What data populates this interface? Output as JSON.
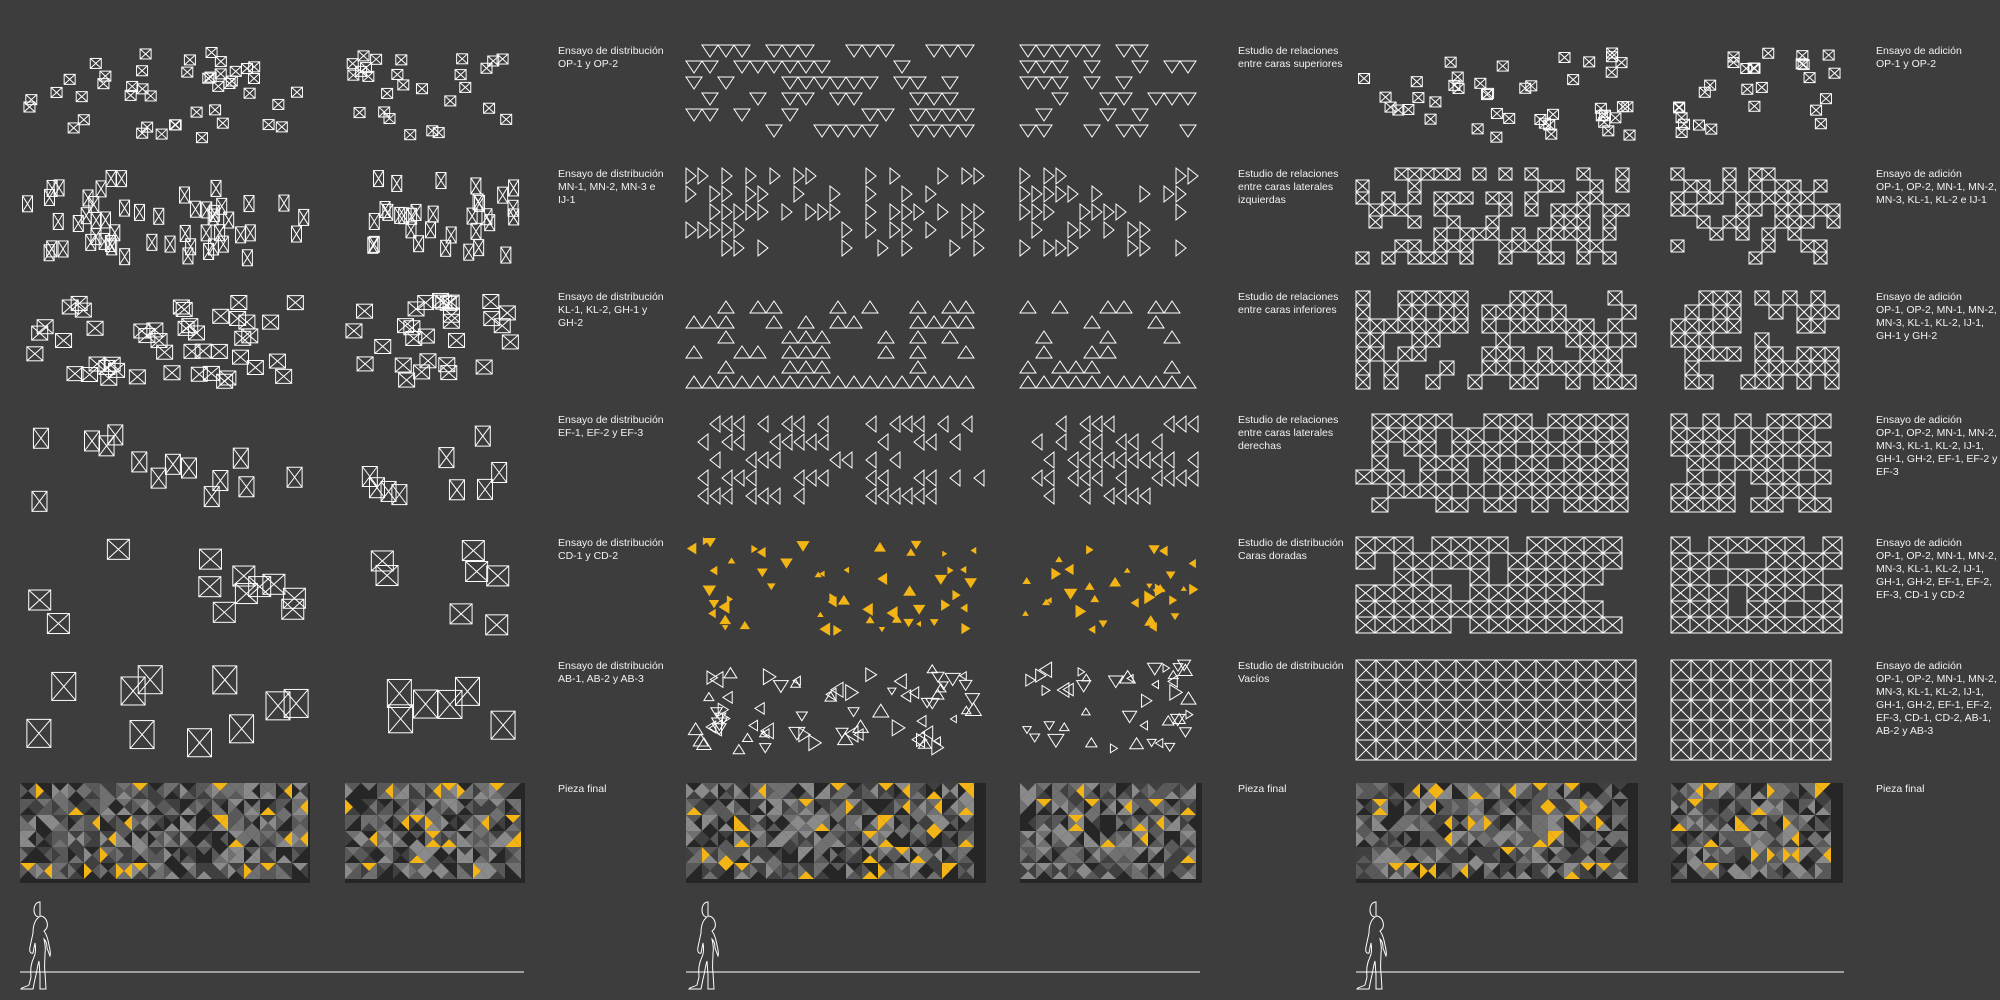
{
  "colors": {
    "background": "#3d3d3d",
    "line": "#ffffff",
    "gold": "#f3b416",
    "tile_dark": "#262626",
    "tile_mid": "#595959",
    "tile_light": "#8a8a8a"
  },
  "icons": [
    "human-silhouette-icon"
  ],
  "columns": [
    {
      "name": "distribucion",
      "rows": [
        {
          "title": "Ensayo de distribución",
          "subtitle": "OP-1 y OP-2"
        },
        {
          "title": "Ensayo de distribución",
          "subtitle": "MN-1, MN-2, MN-3 e\nIJ-1"
        },
        {
          "title": "Ensayo de distribución",
          "subtitle": "KL-1, KL-2, GH-1 y\nGH-2"
        },
        {
          "title": "Ensayo de distribución",
          "subtitle": "EF-1, EF-2 y EF-3"
        },
        {
          "title": "Ensayo de distribución",
          "subtitle": "CD-1 y CD-2"
        },
        {
          "title": "Ensayo de distribución",
          "subtitle": "AB-1, AB-2 y AB-3"
        },
        {
          "title": "Pieza final",
          "subtitle": ""
        }
      ]
    },
    {
      "name": "relaciones",
      "rows": [
        {
          "title": "Estudio de relaciones",
          "subtitle": "entre caras superiores"
        },
        {
          "title": "Estudio de relaciones",
          "subtitle": "entre caras laterales\nizquierdas"
        },
        {
          "title": "Estudio de relaciones",
          "subtitle": "entre caras inferiores"
        },
        {
          "title": "Estudio de relaciones",
          "subtitle": "entre caras laterales\nderechas"
        },
        {
          "title": "Estudio de distribución",
          "subtitle": "Caras doradas"
        },
        {
          "title": "Estudio de distribución",
          "subtitle": "Vacíos"
        },
        {
          "title": "Pieza final",
          "subtitle": ""
        }
      ]
    },
    {
      "name": "adicion",
      "rows": [
        {
          "title": "Ensayo de adición",
          "subtitle": "OP-1 y OP-2"
        },
        {
          "title": "Ensayo de adición",
          "subtitle": "OP-1, OP-2, MN-1, MN-2,\nMN-3, KL-1, KL-2 e IJ-1"
        },
        {
          "title": "Ensayo de adición",
          "subtitle": "OP-1, OP-2, MN-1, MN-2,\nMN-3, KL-1, KL-2, IJ-1,\nGH-1 y GH-2"
        },
        {
          "title": "Ensayo de adición",
          "subtitle": "OP-1, OP-2, MN-1, MN-2,\nMN-3, KL-1, KL-2, IJ-1,\nGH-1, GH-2, EF-1, EF-2 y\nEF-3"
        },
        {
          "title": "Ensayo de adición",
          "subtitle": "OP-1, OP-2, MN-1, MN-2,\nMN-3, KL-1, KL-2, IJ-1,\nGH-1, GH-2, EF-1, EF-2,\nEF-3, CD-1 y CD-2"
        },
        {
          "title": "Ensayo de adición",
          "subtitle": "OP-1, OP-2, MN-1, MN-2,\nMN-3, KL-1, KL-2, IJ-1,\nGH-1, GH-2, EF-1, EF-2,\nEF-3, CD-1, CD-2, AB-1,\nAB-2 y AB-3"
        },
        {
          "title": "Pieza final",
          "subtitle": ""
        }
      ]
    }
  ]
}
